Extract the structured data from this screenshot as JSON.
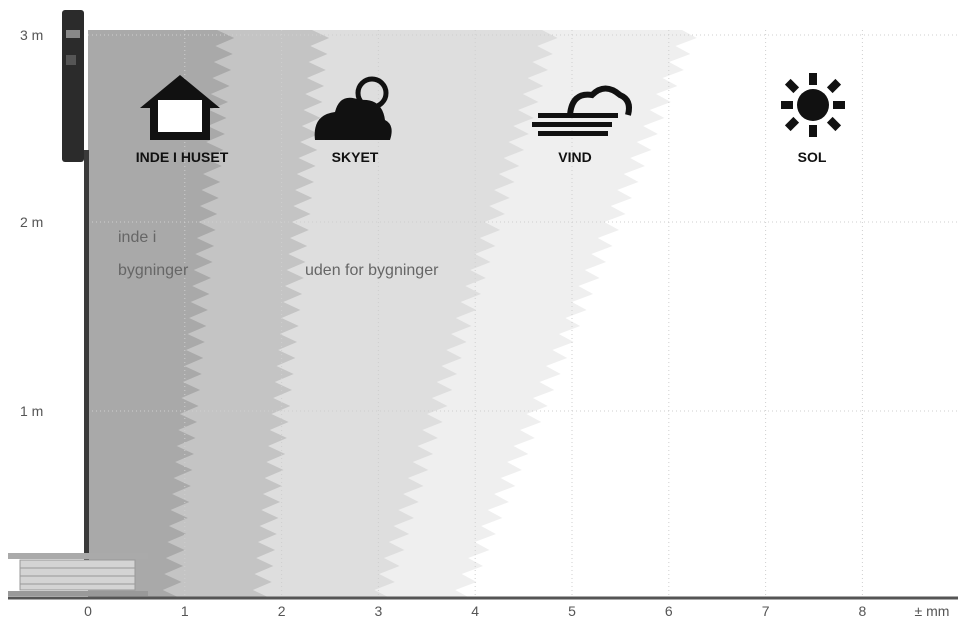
{
  "y_axis": {
    "ticks": [
      "3 m",
      "2 m",
      "1 m"
    ]
  },
  "x_axis": {
    "ticks": [
      "0",
      "1",
      "2",
      "3",
      "4",
      "5",
      "6",
      "7",
      "8"
    ],
    "unit": "± mm"
  },
  "conditions": [
    {
      "label": "INDE I HUSET"
    },
    {
      "label": "SKYET"
    },
    {
      "label": "VIND"
    },
    {
      "label": "SOL"
    }
  ],
  "zones": {
    "inside": [
      "inde i",
      "bygninger"
    ],
    "outside": "uden for bygninger"
  }
}
